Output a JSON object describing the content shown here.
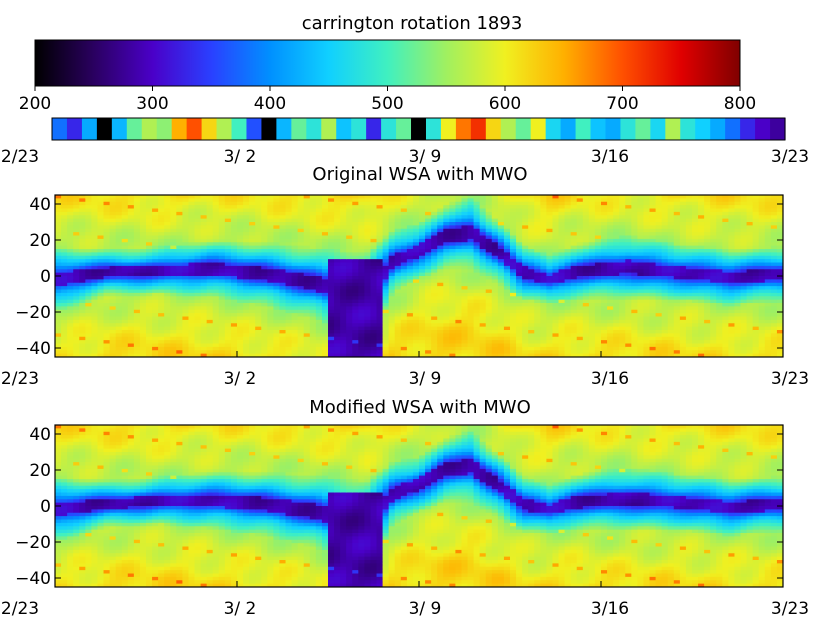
{
  "chart_data": [
    {
      "type": "colorbar",
      "title": "carrington rotation 1893",
      "range": [
        200,
        800
      ],
      "ticks": [
        "200",
        "300",
        "400",
        "500",
        "600",
        "700",
        "800"
      ],
      "colormap": [
        "#000000",
        "#2a0060",
        "#4a00c8",
        "#2a40ff",
        "#0090ff",
        "#10d0ff",
        "#40f0c0",
        "#a0f060",
        "#f0f020",
        "#ffb000",
        "#ff5000",
        "#e00000",
        "#800000"
      ]
    },
    {
      "type": "heatmap-strip",
      "description_values": [
        380,
        330,
        420,
        200,
        430,
        520,
        560,
        540,
        650,
        700,
        620,
        560,
        500,
        360,
        200,
        430,
        520,
        480,
        560,
        440,
        480,
        330,
        480,
        520,
        200,
        480,
        600,
        680,
        720,
        620,
        560,
        520,
        600,
        460,
        420,
        500,
        440,
        420,
        480,
        520,
        460,
        560,
        480,
        450,
        420,
        380,
        330,
        300,
        280
      ],
      "xticks": [
        "2/23",
        "3/ 2",
        "3/ 9",
        "3/16",
        "3/23"
      ]
    },
    {
      "type": "heatmap",
      "title": "Original WSA with MWO",
      "yticks": [
        "40",
        "20",
        "0",
        "−20",
        "−40"
      ],
      "xticks": [
        "2/23",
        "3/ 2",
        "3/ 9",
        "3/16",
        "3/23"
      ],
      "ylim": [
        -45,
        45
      ],
      "xrange_days": [
        0,
        28
      ],
      "neutral_line": [
        [
          0,
          -2
        ],
        [
          2,
          2
        ],
        [
          4,
          3
        ],
        [
          6,
          4
        ],
        [
          8,
          1
        ],
        [
          10,
          -4
        ],
        [
          11,
          -8
        ],
        [
          12,
          -14
        ],
        [
          13,
          8
        ],
        [
          14,
          14
        ],
        [
          15,
          22
        ],
        [
          16,
          24
        ],
        [
          17,
          14
        ],
        [
          18,
          2
        ],
        [
          19,
          -2
        ],
        [
          20,
          2
        ],
        [
          22,
          5
        ],
        [
          24,
          2
        ],
        [
          26,
          -1
        ],
        [
          28,
          1
        ]
      ],
      "neutral_halfwidth": [
        8,
        6,
        6,
        7,
        8,
        9,
        10,
        12,
        8,
        7,
        8,
        9,
        8,
        7,
        6,
        7,
        8,
        7,
        7,
        7
      ],
      "slow_core": {
        "x": [
          10.5,
          12.5
        ],
        "y": [
          -45,
          10
        ]
      }
    },
    {
      "type": "heatmap",
      "title": "Modified WSA with MWO",
      "yticks": [
        "40",
        "20",
        "0",
        "−20",
        "−40"
      ],
      "xticks": [
        "2/23",
        "3/ 2",
        "3/ 9",
        "3/16",
        "3/23"
      ],
      "ylim": [
        -45,
        45
      ],
      "xrange_days": [
        0,
        28
      ],
      "neutral_line": [
        [
          0,
          -2
        ],
        [
          2,
          1
        ],
        [
          4,
          3
        ],
        [
          6,
          3
        ],
        [
          8,
          1
        ],
        [
          10,
          -3
        ],
        [
          11,
          -7
        ],
        [
          12,
          -13
        ],
        [
          13,
          7
        ],
        [
          14,
          12
        ],
        [
          15,
          20
        ],
        [
          16,
          22
        ],
        [
          17,
          12
        ],
        [
          18,
          1
        ],
        [
          19,
          -2
        ],
        [
          20,
          2
        ],
        [
          22,
          4
        ],
        [
          24,
          2
        ],
        [
          26,
          -1
        ],
        [
          28,
          1
        ]
      ],
      "neutral_halfwidth": [
        8,
        6,
        6,
        7,
        8,
        9,
        10,
        12,
        8,
        7,
        8,
        9,
        8,
        7,
        6,
        7,
        8,
        7,
        7,
        7
      ],
      "slow_core": {
        "x": [
          10.5,
          12.5
        ],
        "y": [
          -45,
          8
        ]
      }
    }
  ]
}
